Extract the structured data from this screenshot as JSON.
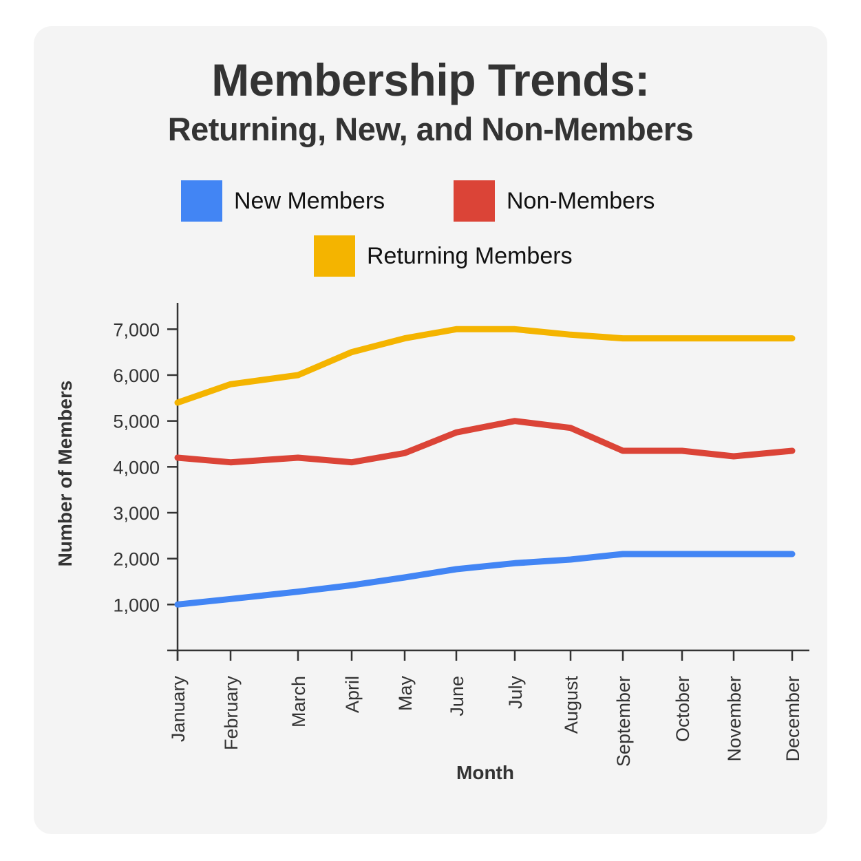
{
  "title": {
    "line1": "Membership Trends:",
    "line2": "Returning, New, and Non-Members"
  },
  "legend": [
    {
      "label": "New Members",
      "color": "#4285F4"
    },
    {
      "label": "Non-Members",
      "color": "#DB4437"
    },
    {
      "label": "Returning Members",
      "color": "#F4B400"
    }
  ],
  "axes": {
    "xlabel": "Month",
    "ylabel": "Number of Members",
    "yticks": [
      "1,000",
      "2,000",
      "3,000",
      "4,000",
      "5,000",
      "6,000",
      "7,000"
    ]
  },
  "chart_data": {
    "type": "line",
    "title": "Membership Trends: Returning, New, and Non-Members",
    "xlabel": "Month",
    "ylabel": "Number of Members",
    "categories": [
      "January",
      "February",
      "March",
      "April",
      "May",
      "June",
      "July",
      "August",
      "September",
      "October",
      "November",
      "December"
    ],
    "series": [
      {
        "name": "New Members",
        "color": "#4285F4",
        "values": [
          1000,
          1120,
          1280,
          1420,
          1590,
          1770,
          1900,
          1980,
          2100,
          2100,
          2100,
          2100
        ]
      },
      {
        "name": "Non-Members",
        "color": "#DB4437",
        "values": [
          4200,
          4100,
          4200,
          4100,
          4300,
          4750,
          5000,
          4850,
          4350,
          4350,
          4230,
          4350
        ]
      },
      {
        "name": "Returning Members",
        "color": "#F4B400",
        "values": [
          5400,
          5800,
          6000,
          6500,
          6800,
          7000,
          7000,
          6880,
          6800,
          6800,
          6800,
          6800
        ]
      }
    ],
    "yticks": [
      1000,
      2000,
      3000,
      4000,
      5000,
      6000,
      7000
    ],
    "ylim": [
      0,
      7600
    ],
    "grid": false,
    "legend_position": "top"
  }
}
